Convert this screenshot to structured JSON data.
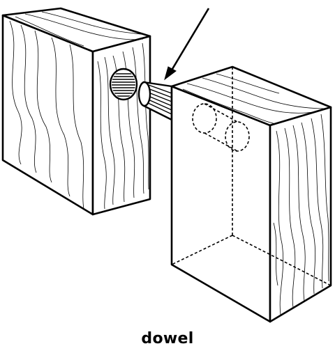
{
  "label": "dowel"
}
